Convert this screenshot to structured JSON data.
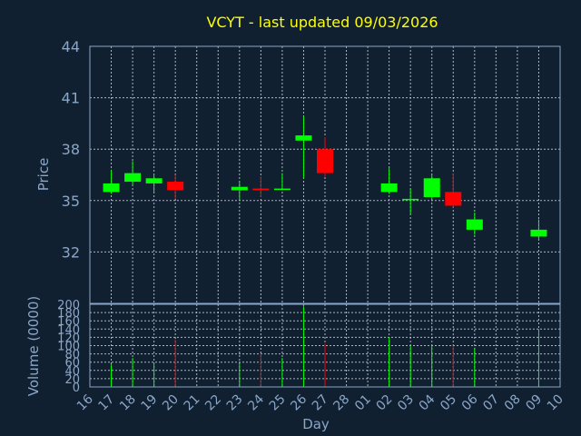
{
  "colors": {
    "background": "#102030",
    "up": "#00ff00",
    "down": "#ff0000",
    "text": "#8aa6c8",
    "title": "#ffff00",
    "grid": "#c8d0dc"
  },
  "chart_data": {
    "type": "candlestick",
    "title": "VCYT - last updated 09/03/2026",
    "price_axis": {
      "label": "Price",
      "ylim": [
        29,
        44
      ],
      "ticks": [
        "44",
        "41",
        "38",
        "35",
        "32"
      ]
    },
    "volume_axis": {
      "label": "Volume (0000)",
      "ylim": [
        0,
        200
      ],
      "ticks": [
        "200",
        "180",
        "160",
        "140",
        "120",
        "100",
        "80",
        "60",
        "40",
        "20",
        "0"
      ]
    },
    "xlabel": "Day",
    "x_ticks": [
      "16",
      "17",
      "18",
      "19",
      "20",
      "21",
      "22",
      "23",
      "24",
      "25",
      "26",
      "27",
      "28",
      "01",
      "02",
      "03",
      "04",
      "05",
      "06",
      "07",
      "08",
      "09",
      "10"
    ],
    "grid": true,
    "candles": [
      {
        "day": "17",
        "open": 35.5,
        "close": 36.0,
        "high": 36.8,
        "low": 35.4,
        "volume": 55
      },
      {
        "day": "18",
        "open": 36.1,
        "close": 36.6,
        "high": 37.3,
        "low": 35.9,
        "volume": 70
      },
      {
        "day": "19",
        "open": 36.0,
        "close": 36.3,
        "high": 36.5,
        "low": 35.5,
        "volume": 55
      },
      {
        "day": "20",
        "open": 36.1,
        "close": 35.6,
        "high": 36.5,
        "low": 35.1,
        "volume": 115
      },
      {
        "day": "23",
        "open": 35.6,
        "close": 35.8,
        "high": 36.1,
        "low": 35.0,
        "volume": 60
      },
      {
        "day": "24",
        "open": 35.7,
        "close": 35.6,
        "high": 36.4,
        "low": 35.2,
        "volume": 80
      },
      {
        "day": "25",
        "open": 35.7,
        "close": 35.7,
        "high": 36.6,
        "low": 35.6,
        "volume": 70
      },
      {
        "day": "26",
        "open": 38.5,
        "close": 38.8,
        "high": 39.9,
        "low": 36.3,
        "volume": 195
      },
      {
        "day": "27",
        "open": 38.0,
        "close": 36.6,
        "high": 38.7,
        "low": 36.4,
        "volume": 105
      },
      {
        "day": "02",
        "open": 35.5,
        "close": 36.0,
        "high": 36.9,
        "low": 35.4,
        "volume": 120
      },
      {
        "day": "03",
        "open": 35.1,
        "close": 35.1,
        "high": 35.7,
        "low": 34.2,
        "volume": 100
      },
      {
        "day": "04",
        "open": 35.2,
        "close": 36.3,
        "high": 36.5,
        "low": 35.1,
        "volume": 100
      },
      {
        "day": "05",
        "open": 35.5,
        "close": 34.7,
        "high": 36.6,
        "low": 34.6,
        "volume": 100
      },
      {
        "day": "06",
        "open": 33.3,
        "close": 33.9,
        "high": 34.3,
        "low": 33.0,
        "volume": 95
      },
      {
        "day": "09",
        "open": 32.9,
        "close": 33.3,
        "high": 33.9,
        "low": 32.7,
        "volume": 140
      }
    ]
  }
}
